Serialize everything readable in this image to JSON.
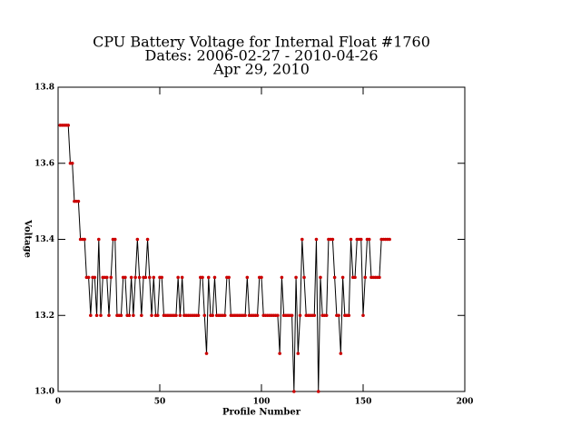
{
  "chart_data": {
    "type": "line",
    "title": [
      "CPU Battery Voltage for Internal Float #1760",
      "Dates:  2006-02-27 -  2010-04-26",
      "Apr 29, 2010"
    ],
    "x_label": "Profile Number",
    "y_label": "Voltage",
    "xlim": [
      0,
      200
    ],
    "xticks": [
      0,
      50,
      100,
      150,
      200
    ],
    "ylim": [
      13.0,
      13.8
    ],
    "yticks": [
      {
        "value": 13.0,
        "label": "13.0"
      },
      13.2,
      13.4,
      13.6,
      13.8
    ],
    "line_color": "#000000",
    "marker_color": "#cc0000",
    "x": [
      1,
      2,
      3,
      4,
      5,
      6,
      7,
      8,
      9,
      10,
      11,
      12,
      13,
      14,
      15,
      16,
      17,
      18,
      19,
      20,
      21,
      22,
      23,
      24,
      25,
      26,
      27,
      28,
      29,
      30,
      31,
      32,
      33,
      34,
      35,
      36,
      37,
      38,
      39,
      40,
      41,
      42,
      43,
      44,
      45,
      46,
      47,
      48,
      49,
      50,
      51,
      52,
      53,
      54,
      55,
      56,
      57,
      58,
      59,
      60,
      61,
      62,
      63,
      64,
      65,
      66,
      67,
      68,
      69,
      70,
      71,
      72,
      73,
      74,
      75,
      76,
      77,
      78,
      79,
      80,
      81,
      82,
      83,
      84,
      85,
      86,
      87,
      88,
      89,
      90,
      91,
      92,
      93,
      94,
      95,
      96,
      97,
      98,
      99,
      100,
      101,
      102,
      103,
      104,
      105,
      106,
      107,
      108,
      109,
      110,
      111,
      112,
      113,
      114,
      115,
      116,
      117,
      118,
      119,
      120,
      121,
      122,
      123,
      124,
      125,
      126,
      127,
      128,
      129,
      130,
      131,
      132,
      133,
      134,
      135,
      136,
      137,
      138,
      139,
      140,
      141,
      142,
      143,
      144,
      145,
      146,
      147,
      148,
      149,
      150,
      151,
      152,
      153,
      154,
      155,
      156,
      157,
      158,
      159,
      160,
      161,
      162,
      163
    ],
    "values": [
      13.7,
      13.7,
      13.7,
      13.7,
      13.7,
      13.6,
      13.6,
      13.5,
      13.5,
      13.5,
      13.4,
      13.4,
      13.4,
      13.3,
      13.3,
      13.2,
      13.3,
      13.3,
      13.2,
      13.4,
      13.2,
      13.3,
      13.3,
      13.3,
      13.2,
      13.3,
      13.4,
      13.4,
      13.2,
      13.2,
      13.2,
      13.3,
      13.3,
      13.2,
      13.2,
      13.3,
      13.2,
      13.3,
      13.4,
      13.3,
      13.2,
      13.3,
      13.3,
      13.4,
      13.3,
      13.2,
      13.3,
      13.2,
      13.2,
      13.3,
      13.3,
      13.2,
      13.2,
      13.2,
      13.2,
      13.2,
      13.2,
      13.2,
      13.3,
      13.2,
      13.3,
      13.2,
      13.2,
      13.2,
      13.2,
      13.2,
      13.2,
      13.2,
      13.2,
      13.3,
      13.3,
      13.2,
      13.1,
      13.3,
      13.2,
      13.2,
      13.3,
      13.2,
      13.2,
      13.2,
      13.2,
      13.2,
      13.3,
      13.3,
      13.2,
      13.2,
      13.2,
      13.2,
      13.2,
      13.2,
      13.2,
      13.2,
      13.3,
      13.2,
      13.2,
      13.2,
      13.2,
      13.2,
      13.3,
      13.3,
      13.2,
      13.2,
      13.2,
      13.2,
      13.2,
      13.2,
      13.2,
      13.2,
      13.1,
      13.3,
      13.2,
      13.2,
      13.2,
      13.2,
      13.2,
      13.0,
      13.3,
      13.1,
      13.2,
      13.4,
      13.3,
      13.2,
      13.2,
      13.2,
      13.2,
      13.2,
      13.4,
      13.0,
      13.3,
      13.2,
      13.2,
      13.2,
      13.4,
      13.4,
      13.4,
      13.3,
      13.2,
      13.2,
      13.1,
      13.3,
      13.2,
      13.2,
      13.2,
      13.4,
      13.3,
      13.3,
      13.4,
      13.4,
      13.4,
      13.2,
      13.3,
      13.4,
      13.4,
      13.3,
      13.3,
      13.3,
      13.3,
      13.3,
      13.4,
      13.4,
      13.4,
      13.4,
      13.4
    ]
  }
}
